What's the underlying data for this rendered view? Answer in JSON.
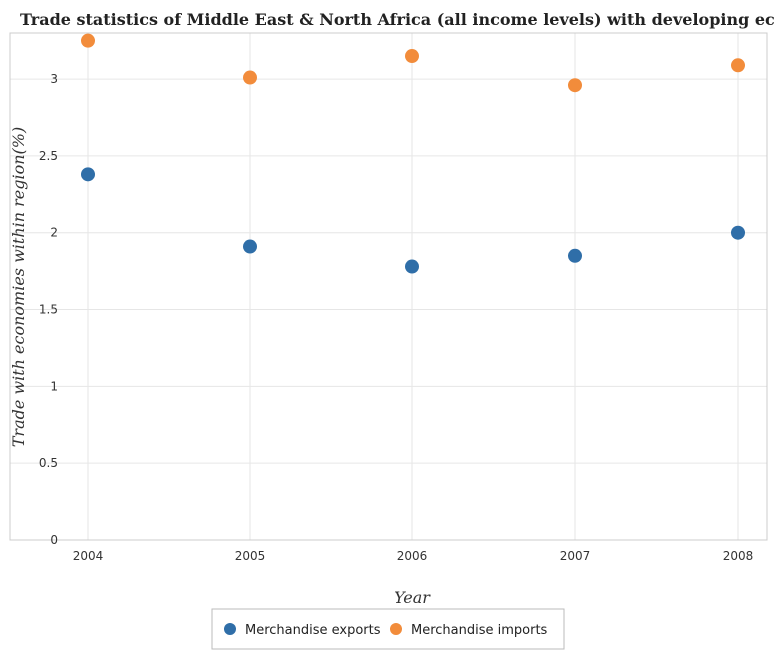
{
  "chart_data": {
    "type": "scatter",
    "title": "Trade statistics of Middle East & North Africa (all income levels) with developing economies",
    "xlabel": "Year",
    "ylabel": "Trade with economies within region(%)",
    "categories": [
      "2004",
      "2005",
      "2006",
      "2007",
      "2008"
    ],
    "ylim": [
      0,
      3.3
    ],
    "yticks": [
      0,
      0.5,
      1,
      1.5,
      2,
      2.5,
      3
    ],
    "ytick_labels": [
      "0",
      "0.5",
      "1",
      "1.5",
      "2",
      "2.5",
      "3"
    ],
    "grid": true,
    "legend_position": "bottom-center",
    "series": [
      {
        "name": "Merchandise exports",
        "color": "#2f6ea8",
        "values": [
          2.38,
          1.91,
          1.78,
          1.85,
          2.0
        ]
      },
      {
        "name": "Merchandise imports",
        "color": "#f28c3b",
        "values": [
          3.25,
          3.01,
          3.15,
          2.96,
          3.09
        ]
      }
    ]
  }
}
